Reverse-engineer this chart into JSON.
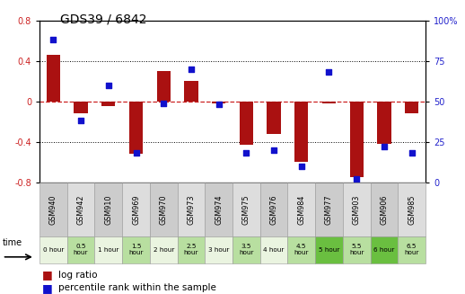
{
  "title": "GDS39 / 6842",
  "samples": [
    "GSM940",
    "GSM942",
    "GSM910",
    "GSM969",
    "GSM970",
    "GSM973",
    "GSM974",
    "GSM975",
    "GSM976",
    "GSM984",
    "GSM977",
    "GSM903",
    "GSM906",
    "GSM985"
  ],
  "time_labels": [
    "0 hour",
    "0.5\nhour",
    "1 hour",
    "1.5\nhour",
    "2 hour",
    "2.5\nhour",
    "3 hour",
    "3.5\nhour",
    "4 hour",
    "4.5\nhour",
    "5 hour",
    "5.5\nhour",
    "6 hour",
    "6.5\nhour"
  ],
  "time_bg": [
    "#eaf4e0",
    "#b8dfa0",
    "#eaf4e0",
    "#b8dfa0",
    "#eaf4e0",
    "#b8dfa0",
    "#eaf4e0",
    "#b8dfa0",
    "#eaf4e0",
    "#b8dfa0",
    "#6abf40",
    "#b8dfa0",
    "#6abf40",
    "#b8dfa0"
  ],
  "sample_bg": [
    "#cccccc",
    "#dddddd",
    "#cccccc",
    "#dddddd",
    "#cccccc",
    "#dddddd",
    "#cccccc",
    "#dddddd",
    "#cccccc",
    "#dddddd",
    "#cccccc",
    "#dddddd",
    "#cccccc",
    "#dddddd"
  ],
  "log_ratio": [
    0.46,
    -0.12,
    -0.05,
    -0.52,
    0.3,
    0.2,
    -0.02,
    -0.43,
    -0.32,
    -0.6,
    -0.02,
    -0.75,
    -0.42,
    -0.12
  ],
  "percentile": [
    88,
    38,
    60,
    18,
    49,
    70,
    48,
    18,
    20,
    10,
    68,
    2,
    22,
    18
  ],
  "bar_color": "#aa1111",
  "dot_color": "#1111cc",
  "ylim": [
    -0.8,
    0.8
  ],
  "y2lim": [
    0,
    100
  ],
  "yticks_left": [
    -0.8,
    -0.4,
    0.0,
    0.4,
    0.8
  ],
  "yticks_right": [
    0,
    25,
    50,
    75,
    100
  ],
  "ylabel_left_color": "#cc2222",
  "ylabel_right_color": "#2222cc",
  "zero_line_color": "#cc2222",
  "grid_color": "#000000",
  "title_fontsize": 10,
  "axis_fontsize": 7,
  "tick_fontsize": 7,
  "legend_fontsize": 7.5
}
